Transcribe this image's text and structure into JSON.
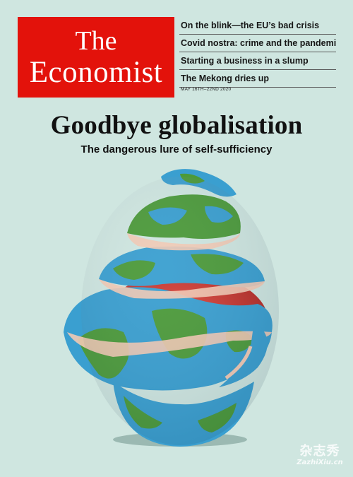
{
  "masthead": {
    "line1": "The",
    "line2": "Economist"
  },
  "teasers": [
    {
      "text": "On the blink—the EU’s bad crisis"
    },
    {
      "text": "Covid nostra: crime and the pandemic"
    },
    {
      "text": "Starting a business in a slump"
    },
    {
      "text": "The Mekong dries up"
    }
  ],
  "dateline": "MAY 16TH–22ND 2020",
  "headline": "Goodbye globalisation",
  "subhead": "The dangerous lure of self-sufficiency",
  "colors": {
    "background": "#cfe6e0",
    "masthead_red": "#e3120b",
    "ocean": "#3a9fd0",
    "land": "#4c9a3a",
    "core": "#cf3b34",
    "peel_inner": "#f2c9b4"
  },
  "illustration": {
    "name": "peeled-globe-illustration"
  },
  "watermark": {
    "line1": "杂志秀",
    "line2": "ZazhiXiu.cn"
  }
}
